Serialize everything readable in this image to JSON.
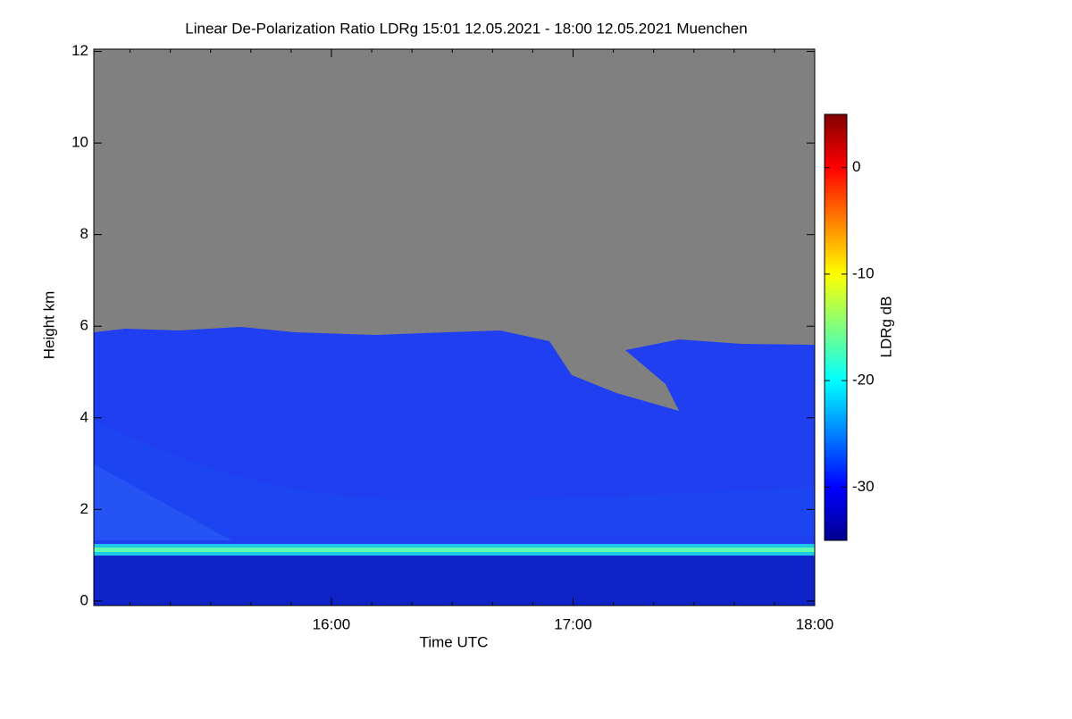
{
  "chart_data": {
    "type": "heatmap",
    "title": "Linear De-Polarization Ratio LDRg   15:01 12.05.2021 - 18:00 12.05.2021 Muenchen",
    "x_label": "Time UTC",
    "y_label": "Height km",
    "colorbar_label": "LDRg dB",
    "xlim": [
      901,
      1080
    ],
    "xticks": [
      {
        "value": 960,
        "label": "16:00"
      },
      {
        "value": 1020,
        "label": "17:00"
      },
      {
        "value": 1080,
        "label": "18:00"
      }
    ],
    "xminorticks": [
      910,
      920,
      930,
      940,
      950,
      970,
      980,
      990,
      1000,
      1010,
      1030,
      1040,
      1050,
      1060,
      1070
    ],
    "ylim": [
      -0.1,
      12.05
    ],
    "yticks": [
      0,
      2,
      4,
      6,
      8,
      10,
      12
    ],
    "clim": [
      -35,
      5
    ],
    "cticks": [
      -30,
      -20,
      -10,
      0
    ],
    "colormap": [
      "#00008f",
      "#0000ff",
      "#0080ff",
      "#00ffff",
      "#80ff80",
      "#ffff00",
      "#ff8000",
      "#ff0000",
      "#800000"
    ]
  }
}
